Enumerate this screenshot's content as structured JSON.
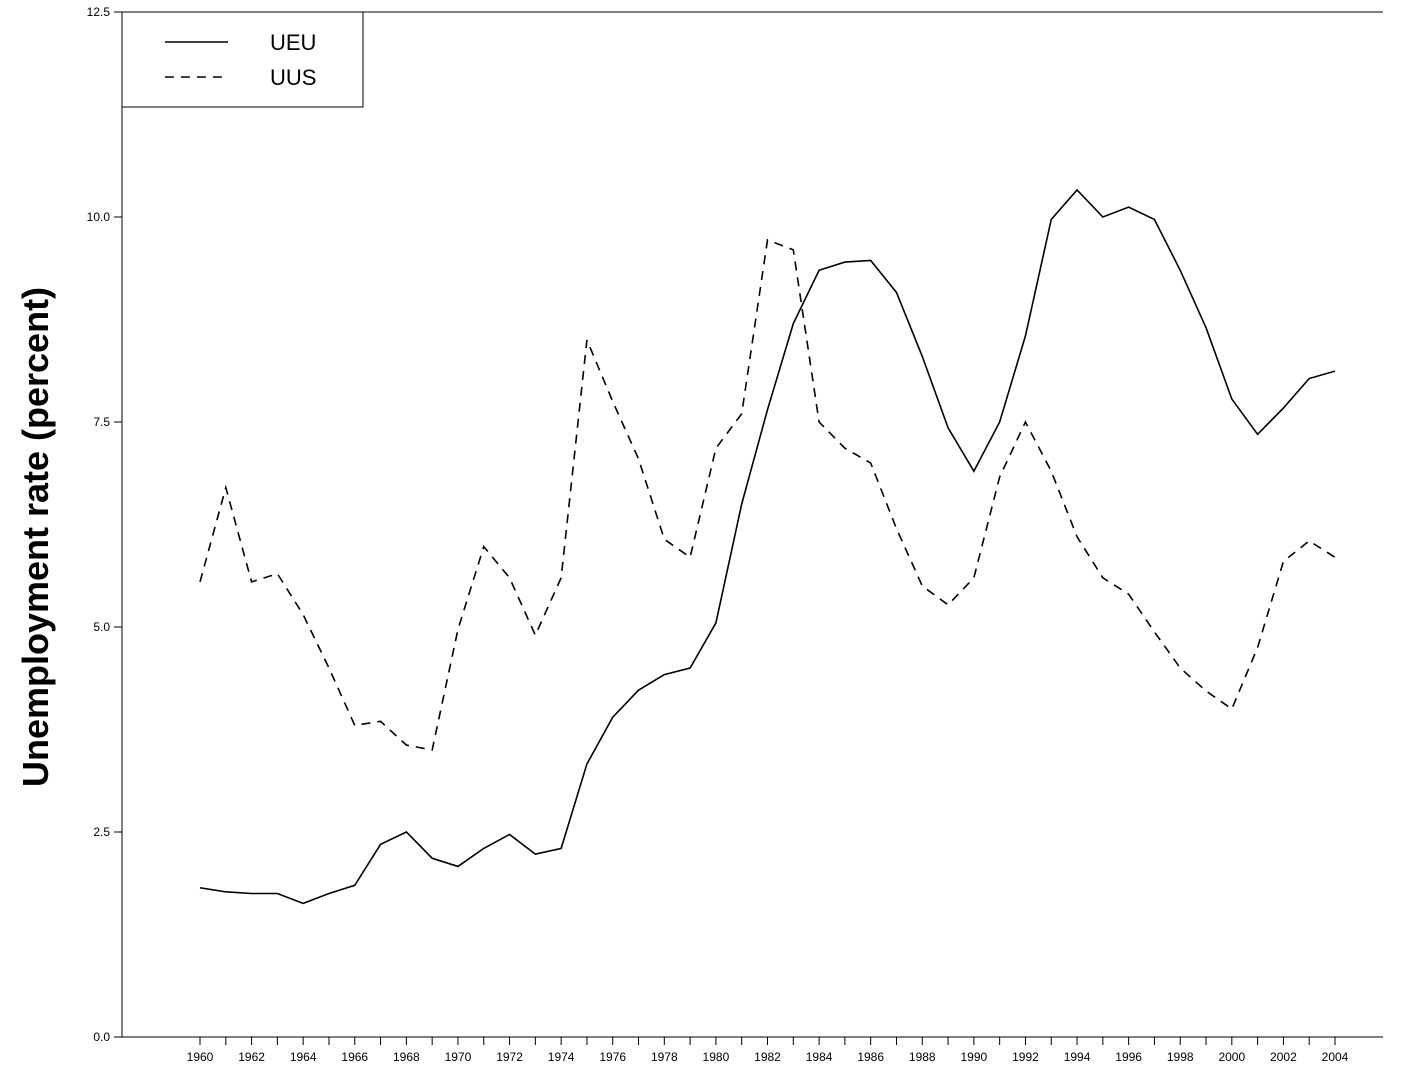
{
  "chart_data": {
    "type": "line",
    "title": "",
    "xlabel": "",
    "ylabel": "Unemployment rate (percent)",
    "x": [
      1960,
      1961,
      1962,
      1963,
      1964,
      1965,
      1966,
      1967,
      1968,
      1969,
      1970,
      1971,
      1972,
      1973,
      1974,
      1975,
      1976,
      1977,
      1978,
      1979,
      1980,
      1981,
      1982,
      1983,
      1984,
      1985,
      1986,
      1987,
      1988,
      1989,
      1990,
      1991,
      1992,
      1993,
      1994,
      1995,
      1996,
      1997,
      1998,
      1999,
      2000,
      2001,
      2002,
      2003,
      2004
    ],
    "x_tick_labels": [
      "1960",
      "1962",
      "1964",
      "1966",
      "1968",
      "1970",
      "1972",
      "1974",
      "1976",
      "1978",
      "1980",
      "1982",
      "1984",
      "1986",
      "1988",
      "1990",
      "1992",
      "1994",
      "1996",
      "1998",
      "2000",
      "2002",
      "2004"
    ],
    "y_tick_labels": [
      "0.0",
      "2.5",
      "5.0",
      "7.5",
      "10.0",
      "12.5"
    ],
    "xlim": [
      1960,
      2004
    ],
    "ylim": [
      0,
      12.5
    ],
    "grid": false,
    "legend_position": "top-left",
    "series": [
      {
        "name": "UEU",
        "style": "solid",
        "color": "#000000",
        "values": [
          1.82,
          1.77,
          1.75,
          1.75,
          1.63,
          1.75,
          1.85,
          2.35,
          2.5,
          2.18,
          2.08,
          2.3,
          2.47,
          2.23,
          2.3,
          3.33,
          3.9,
          4.23,
          4.42,
          4.5,
          5.05,
          6.5,
          7.65,
          8.7,
          9.35,
          9.45,
          9.47,
          9.08,
          8.3,
          7.43,
          6.9,
          7.5,
          8.55,
          9.97,
          10.33,
          10.0,
          10.12,
          9.97,
          9.35,
          8.65,
          7.78,
          7.35,
          7.67,
          8.03,
          8.12
        ]
      },
      {
        "name": "UUS",
        "style": "dashed",
        "color": "#000000",
        "values": [
          5.55,
          6.7,
          5.55,
          5.65,
          5.15,
          4.5,
          3.8,
          3.85,
          3.56,
          3.5,
          4.97,
          5.98,
          5.6,
          4.9,
          5.6,
          8.5,
          7.75,
          7.05,
          6.07,
          5.85,
          7.18,
          7.6,
          9.72,
          9.6,
          7.5,
          7.18,
          7.0,
          6.2,
          5.5,
          5.27,
          5.6,
          6.83,
          7.5,
          6.9,
          6.1,
          5.6,
          5.4,
          4.94,
          4.5,
          4.22,
          4.0,
          4.75,
          5.8,
          6.05,
          5.85
        ]
      }
    ]
  }
}
